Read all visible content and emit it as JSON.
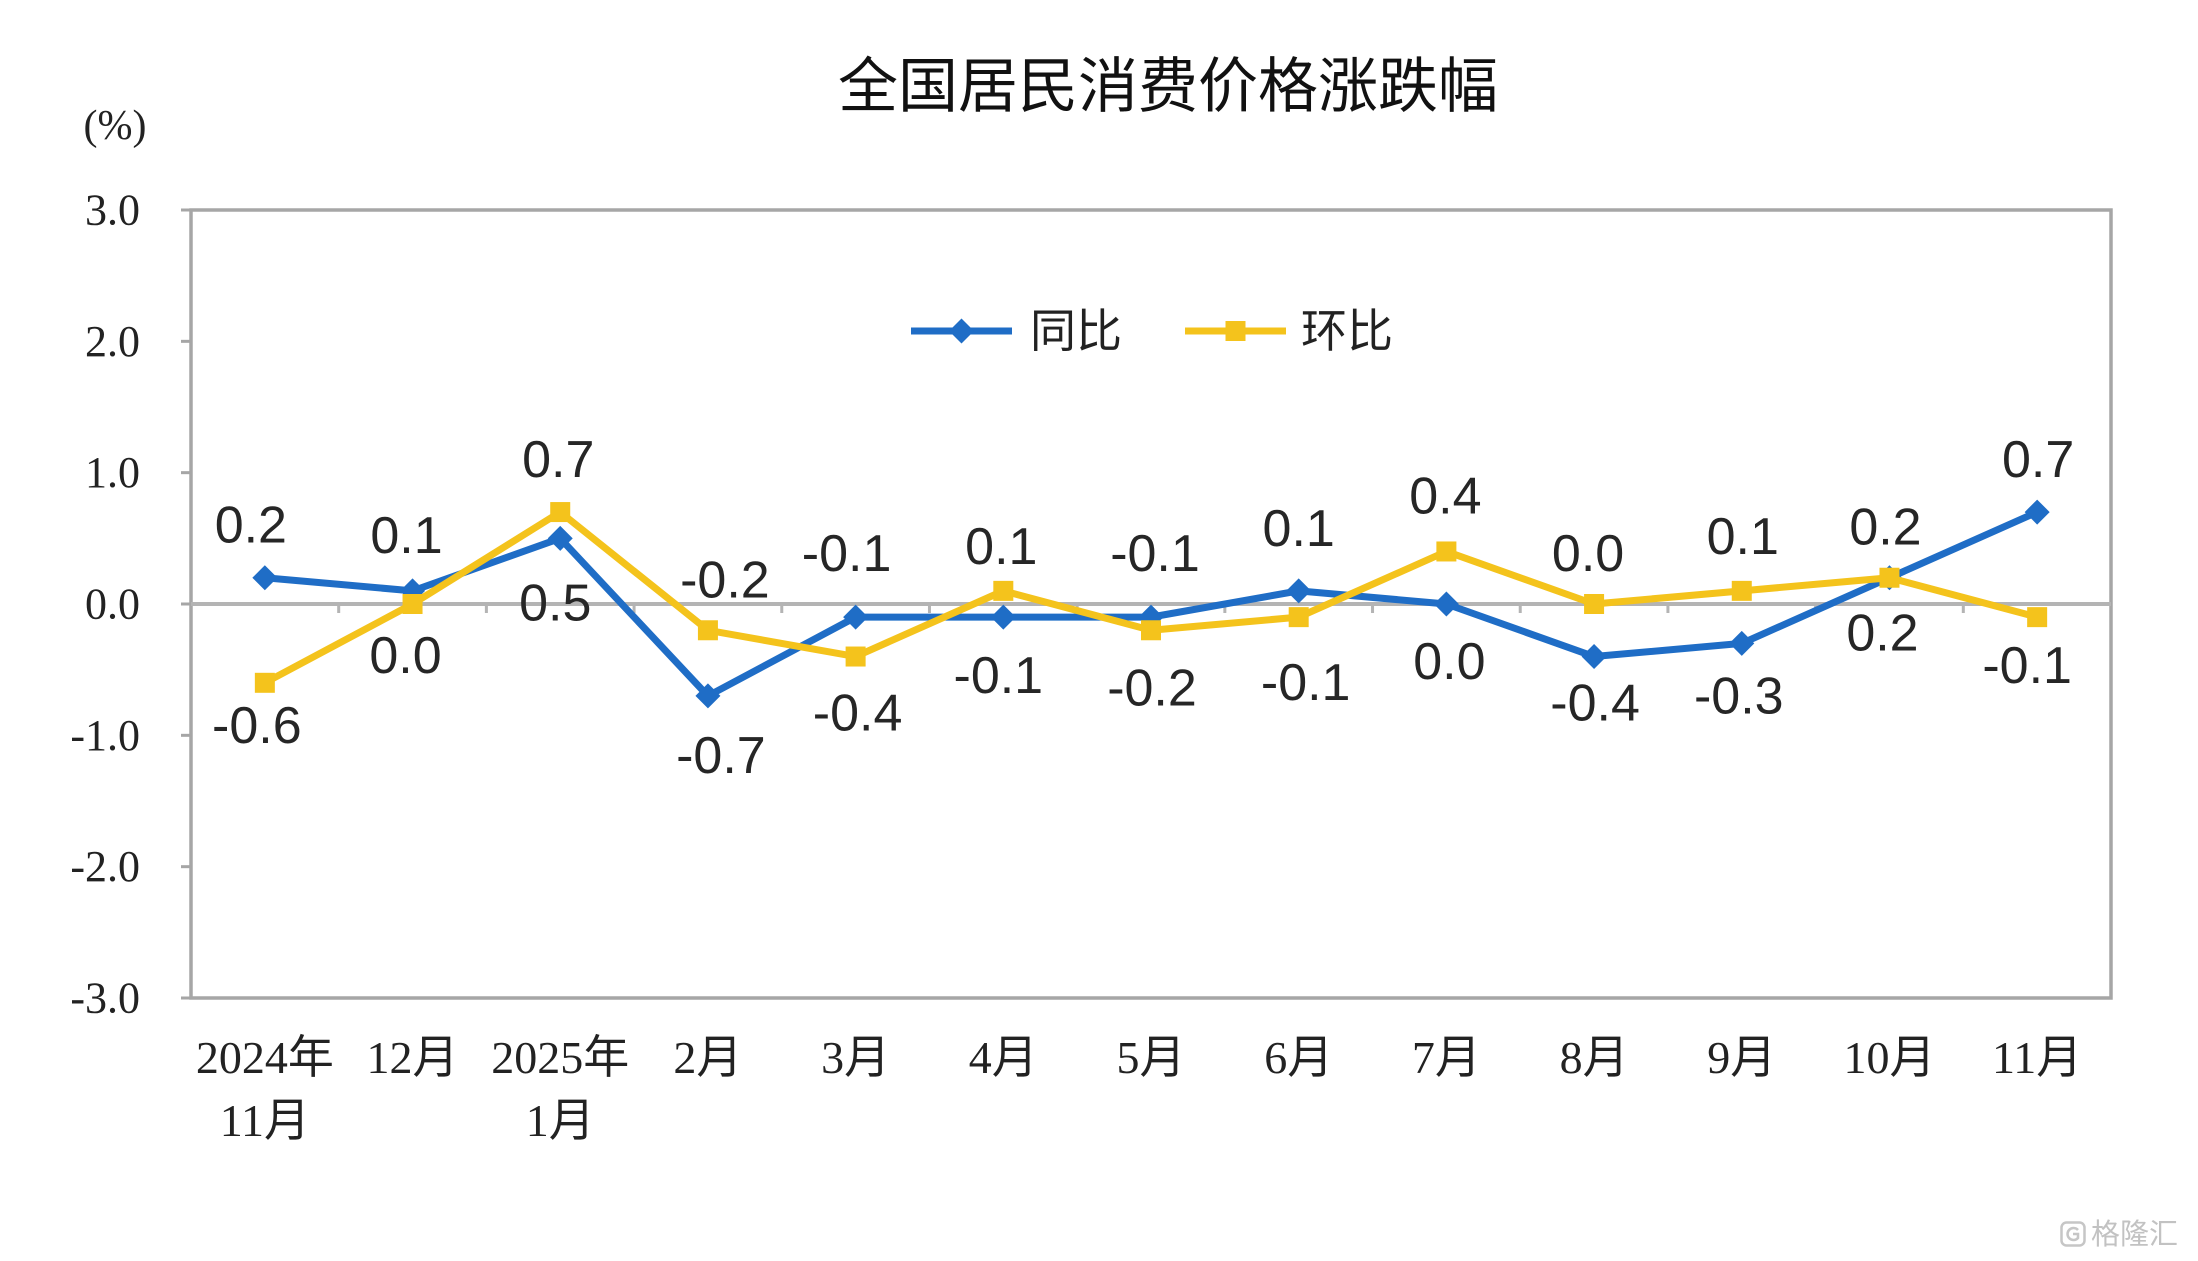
{
  "chart_data": {
    "type": "line",
    "title": "全国居民消费价格涨跌幅",
    "ylabel": "(%)",
    "categories": [
      "2024年\n11月",
      "12月",
      "2025年\n1月",
      "2月",
      "3月",
      "4月",
      "5月",
      "6月",
      "7月",
      "8月",
      "9月",
      "10月",
      "11月"
    ],
    "ylim": [
      -3,
      3
    ],
    "yticks": [
      "3.0",
      "2.0",
      "1.0",
      "0.0",
      "-1.0",
      "-2.0",
      "-3.0"
    ],
    "grid": false,
    "legend": "top-center",
    "series": [
      {
        "name": "同比",
        "color": "#1F6DC6",
        "marker": "diamond",
        "values": [
          0.2,
          0.1,
          0.5,
          -0.7,
          -0.1,
          -0.1,
          -0.1,
          0.1,
          0.0,
          -0.4,
          -0.3,
          0.2,
          0.7
        ],
        "labels": [
          "0.2",
          "0.1",
          "0.5",
          "-0.7",
          "-0.1",
          "-0.1",
          "-0.1",
          "0.1",
          "0.0",
          "-0.4",
          "-0.3",
          "0.2",
          "0.7"
        ]
      },
      {
        "name": "环比",
        "color": "#F4C31C",
        "marker": "square",
        "values": [
          -0.6,
          0.0,
          0.7,
          -0.2,
          -0.4,
          0.1,
          -0.2,
          -0.1,
          0.4,
          0.0,
          0.1,
          0.2,
          -0.1
        ],
        "labels": [
          "-0.6",
          "0.0",
          "0.7",
          "-0.2",
          "-0.4",
          "0.1",
          "-0.2",
          "-0.1",
          "0.4",
          "0.0",
          "0.1",
          "0.2",
          "-0.1"
        ]
      }
    ]
  },
  "watermark": "格隆汇"
}
